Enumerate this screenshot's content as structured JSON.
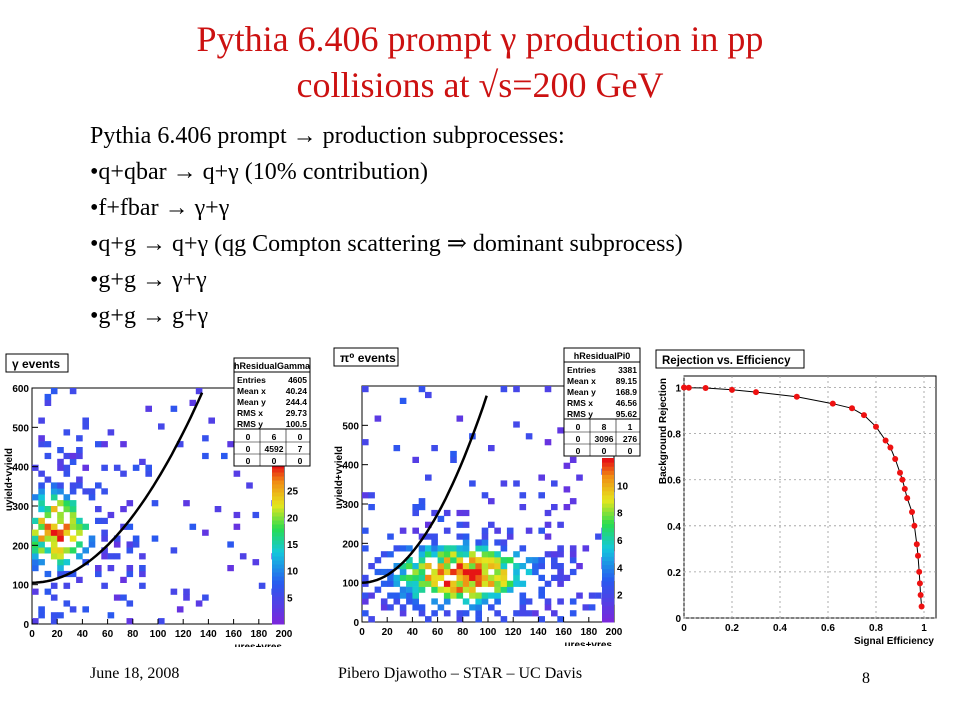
{
  "title": {
    "line1": "Pythia 6.406 prompt γ production in pp",
    "line2": "collisions at √s=200 GeV"
  },
  "body": {
    "heading": "Pythia 6.406 prompt → production subprocesses:",
    "bullets": [
      "q+qbar → q+γ (10% contribution)",
      "f+fbar → γ+γ",
      "q+g → q+γ (qg Compton scattering ⇒ dominant subprocess)",
      "g+g → γ+γ",
      "g+g → g+γ"
    ]
  },
  "footer": {
    "date": "June 18, 2008",
    "author": "Pibero Djawotho – STAR – UC Davis",
    "page": "8"
  },
  "colors": {
    "title": "#cc1111",
    "marker": "#ee1111"
  },
  "chart_data": [
    {
      "type": "heatmap",
      "title": "γ events",
      "xlabel": "ures+vres",
      "ylabel": "uyield+vyield",
      "xlim": [
        0,
        200
      ],
      "ylim": [
        0,
        600
      ],
      "x_ticks": [
        "0",
        "20",
        "40",
        "60",
        "80",
        "100",
        "120",
        "140",
        "160",
        "180",
        "200"
      ],
      "y_ticks": [
        "0",
        "100",
        "200",
        "300",
        "400",
        "500",
        "600"
      ],
      "colorbar_ticks": [
        "5",
        "10",
        "15",
        "20",
        "25"
      ],
      "stats": {
        "name": "hResidualGamma",
        "rows": [
          [
            "Entries",
            "4605"
          ],
          [
            "Mean x",
            "40.24"
          ],
          [
            "Mean y",
            "244.4"
          ],
          [
            "RMS x",
            "29.73"
          ],
          [
            "RMS y",
            "100.5"
          ]
        ],
        "grid": [
          [
            "0",
            "6",
            "0"
          ],
          [
            "0",
            "4592",
            "7"
          ],
          [
            "0",
            "0",
            "0"
          ]
        ]
      },
      "hotspot": [
        20,
        240
      ]
    },
    {
      "type": "heatmap",
      "title": "π⁰ events",
      "xlabel": "ures+vres",
      "ylabel": "uyield+vyield",
      "xlim": [
        0,
        200
      ],
      "ylim": [
        0,
        600
      ],
      "x_ticks": [
        "0",
        "20",
        "40",
        "60",
        "80",
        "100",
        "120",
        "140",
        "160",
        "180",
        "200"
      ],
      "y_ticks": [
        "0",
        "100",
        "200",
        "300",
        "400",
        "500"
      ],
      "colorbar_ticks": [
        "2",
        "4",
        "6",
        "8",
        "10"
      ],
      "stats": {
        "name": "hResidualPi0",
        "rows": [
          [
            "Entries",
            "3381"
          ],
          [
            "Mean x",
            "89.15"
          ],
          [
            "Mean y",
            "168.9"
          ],
          [
            "RMS x",
            "46.56"
          ],
          [
            "RMS y",
            "95.62"
          ]
        ],
        "grid": [
          [
            "0",
            "8",
            "1"
          ],
          [
            "0",
            "3096",
            "276"
          ],
          [
            "0",
            "0",
            "0"
          ]
        ]
      },
      "hotspot": [
        80,
        120
      ]
    },
    {
      "type": "scatter",
      "title": "Rejection vs. Efficiency",
      "xlabel": "Signal Efficiency",
      "ylabel": "Background Rejection",
      "xlim": [
        0,
        1.05
      ],
      "ylim": [
        0,
        1.05
      ],
      "x_ticks": [
        "0",
        "0.2",
        "0.4",
        "0.6",
        "0.8",
        "1"
      ],
      "y_ticks": [
        "0",
        "0.2",
        "0.4",
        "0.6",
        "0.8",
        "1"
      ],
      "x": [
        0.0,
        0.02,
        0.09,
        0.2,
        0.3,
        0.47,
        0.62,
        0.7,
        0.75,
        0.8,
        0.84,
        0.86,
        0.88,
        0.9,
        0.91,
        0.92,
        0.93,
        0.95,
        0.96,
        0.97,
        0.975,
        0.98,
        0.983,
        0.986,
        0.99
      ],
      "y": [
        1.0,
        0.999,
        0.998,
        0.99,
        0.98,
        0.96,
        0.93,
        0.91,
        0.88,
        0.83,
        0.77,
        0.74,
        0.69,
        0.63,
        0.6,
        0.56,
        0.52,
        0.46,
        0.4,
        0.32,
        0.27,
        0.2,
        0.15,
        0.1,
        0.05
      ]
    }
  ]
}
